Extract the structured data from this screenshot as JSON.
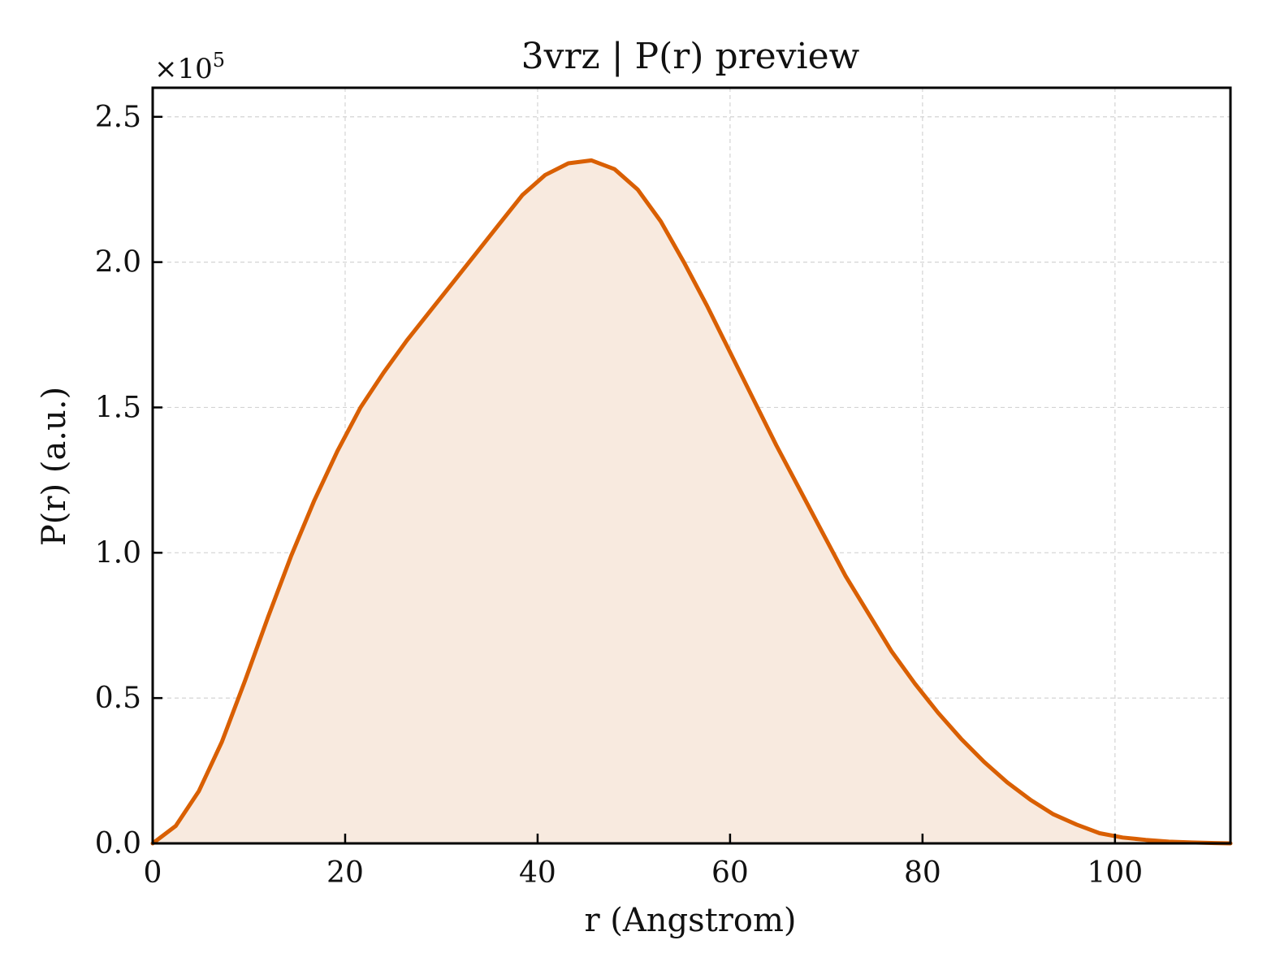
{
  "chart_data": {
    "type": "area",
    "title": "3vrz | P(r) preview",
    "xlabel": "r (Angstrom)",
    "ylabel": "P(r) (a.u.)",
    "y_multiplier_label": "×10",
    "y_multiplier_exponent": "5",
    "xlim": [
      0,
      112
    ],
    "ylim": [
      0,
      2.6
    ],
    "y_scale": 100000,
    "grid": true,
    "x_ticks": [
      0,
      20,
      40,
      60,
      80,
      100
    ],
    "x_tick_labels": [
      "0",
      "20",
      "40",
      "60",
      "80",
      "100"
    ],
    "y_ticks": [
      0,
      0.5,
      1.0,
      1.5,
      2.0,
      2.5
    ],
    "y_tick_labels": [
      "0.0",
      "0.5",
      "1.0",
      "1.5",
      "2.0",
      "2.5"
    ],
    "line_color": "#d95f02",
    "fill_color": "#f8eadf",
    "x": [
      0,
      2.4,
      4.8,
      7.2,
      9.6,
      12,
      14.4,
      16.8,
      19.2,
      21.6,
      24,
      26.4,
      28.8,
      31.2,
      33.6,
      36,
      38.4,
      40.8,
      43.2,
      45.6,
      48,
      50.4,
      52.8,
      55.2,
      57.6,
      60,
      62.4,
      64.8,
      67.2,
      69.6,
      72,
      74.4,
      76.8,
      79.2,
      81.6,
      84,
      86.4,
      88.8,
      91.2,
      93.6,
      96,
      98.4,
      100.8,
      103.2,
      105.6,
      108,
      110.4,
      112
    ],
    "y": [
      0.0,
      0.06,
      0.18,
      0.35,
      0.56,
      0.78,
      0.99,
      1.18,
      1.35,
      1.5,
      1.62,
      1.73,
      1.83,
      1.93,
      2.03,
      2.13,
      2.23,
      2.3,
      2.34,
      2.35,
      2.32,
      2.25,
      2.14,
      2.0,
      1.85,
      1.69,
      1.53,
      1.37,
      1.22,
      1.07,
      0.92,
      0.79,
      0.66,
      0.55,
      0.45,
      0.36,
      0.28,
      0.21,
      0.15,
      0.1,
      0.065,
      0.035,
      0.02,
      0.012,
      0.006,
      0.003,
      0.001,
      0.0
    ]
  }
}
